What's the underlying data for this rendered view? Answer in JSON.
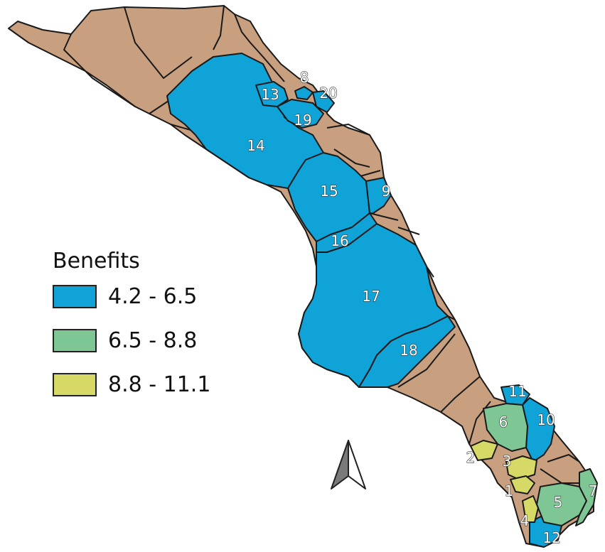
{
  "legend": {
    "title": "Benefits",
    "items": [
      {
        "label": "4.2 - 6.5",
        "color": "#0fa3d8"
      },
      {
        "label": "6.5 - 8.8",
        "color": "#7ec694"
      },
      {
        "label": "8.8 - 11.1",
        "color": "#d7d966"
      }
    ]
  },
  "colors": {
    "background_land": "#c89f7f",
    "border": "#1a1a1a"
  },
  "zones": [
    {
      "id": "1",
      "class": "8.8 - 11.1"
    },
    {
      "id": "2",
      "class": "8.8 - 11.1"
    },
    {
      "id": "3",
      "class": "8.8 - 11.1"
    },
    {
      "id": "4",
      "class": "8.8 - 11.1"
    },
    {
      "id": "5",
      "class": "6.5 - 8.8"
    },
    {
      "id": "6",
      "class": "6.5 - 8.8"
    },
    {
      "id": "7",
      "class": "6.5 - 8.8"
    },
    {
      "id": "8",
      "class": "4.2 - 6.5"
    },
    {
      "id": "9",
      "class": "4.2 - 6.5"
    },
    {
      "id": "10",
      "class": "4.2 - 6.5"
    },
    {
      "id": "11",
      "class": "4.2 - 6.5"
    },
    {
      "id": "12",
      "class": "4.2 - 6.5"
    },
    {
      "id": "13",
      "class": "4.2 - 6.5"
    },
    {
      "id": "14",
      "class": "4.2 - 6.5"
    },
    {
      "id": "15",
      "class": "4.2 - 6.5"
    },
    {
      "id": "16",
      "class": "4.2 - 6.5"
    },
    {
      "id": "17",
      "class": "4.2 - 6.5"
    },
    {
      "id": "18",
      "class": "4.2 - 6.5"
    },
    {
      "id": "19",
      "class": "4.2 - 6.5"
    },
    {
      "id": "20",
      "class": "4.2 - 6.5"
    }
  ],
  "north_arrow_icon": "north-arrow-icon"
}
